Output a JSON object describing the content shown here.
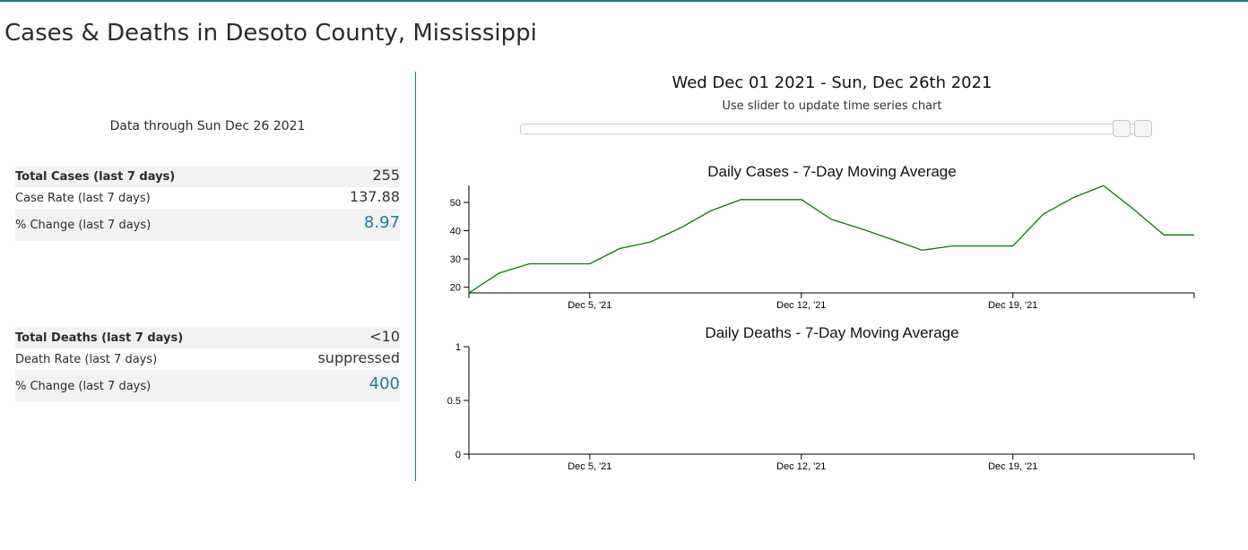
{
  "page": {
    "title": "Cases & Deaths in Desoto County, Mississippi",
    "data_through": "Data through Sun Dec 26 2021"
  },
  "cases_table": {
    "rows": [
      {
        "label": "Total Cases (last 7 days)",
        "value": "255"
      },
      {
        "label": "Case Rate (last 7 days)",
        "value": "137.88"
      },
      {
        "label": "% Change (last 7 days)",
        "value": "8.97"
      }
    ]
  },
  "deaths_table": {
    "rows": [
      {
        "label": "Total Deaths (last 7 days)",
        "value": "<10"
      },
      {
        "label": "Death Rate (last 7 days)",
        "value": "suppressed"
      },
      {
        "label": "% Change (last 7 days)",
        "value": "400"
      }
    ]
  },
  "slider": {
    "range_label": "Wed Dec 01 2021 - Sun, Dec 26th 2021",
    "hint": "Use slider to update time series chart",
    "position": 0.97
  },
  "colors": {
    "accent": "#1a7f9c",
    "line": "#008000"
  },
  "chart_data": [
    {
      "type": "line",
      "title": "Daily Cases - 7-Day Moving Average",
      "xlabel": "",
      "ylabel": "",
      "x_start": "2021-12-01",
      "x_end": "2021-12-25",
      "x": [
        "2021-12-01",
        "2021-12-02",
        "2021-12-03",
        "2021-12-04",
        "2021-12-05",
        "2021-12-06",
        "2021-12-07",
        "2021-12-08",
        "2021-12-09",
        "2021-12-10",
        "2021-12-11",
        "2021-12-12",
        "2021-12-13",
        "2021-12-14",
        "2021-12-15",
        "2021-12-16",
        "2021-12-17",
        "2021-12-18",
        "2021-12-19",
        "2021-12-20",
        "2021-12-21",
        "2021-12-22",
        "2021-12-23",
        "2021-12-24",
        "2021-12-25"
      ],
      "series": [
        {
          "values": [
            18,
            25,
            28.3,
            28.3,
            28.3,
            33.7,
            36,
            41,
            47,
            51,
            51,
            51,
            44,
            40.6,
            36.9,
            33.1,
            34.6,
            34.6,
            34.6,
            45.8,
            51.7,
            55.9,
            47.5,
            38.5,
            38.5
          ]
        }
      ],
      "ylim": [
        18,
        56
      ],
      "yticks": [
        "20",
        "30",
        "40",
        "50"
      ],
      "ytick_values": [
        20,
        30,
        40,
        50
      ],
      "xticks": [
        "Dec 5, '21",
        "Dec 12, '21",
        "Dec 19, '21"
      ],
      "xtick_dates": [
        "2021-12-05",
        "2021-12-12",
        "2021-12-19"
      ],
      "grid": false,
      "legend": "none"
    },
    {
      "type": "line",
      "title": "Daily Deaths - 7-Day Moving Average",
      "xlabel": "",
      "ylabel": "",
      "x_start": "2021-12-01",
      "x_end": "2021-12-25",
      "x": [],
      "series": [],
      "ylim": [
        0,
        1
      ],
      "yticks": [
        "0",
        "0.5",
        "1"
      ],
      "ytick_values": [
        0,
        0.5,
        1
      ],
      "xticks": [
        "Dec 5, '21",
        "Dec 12, '21",
        "Dec 19, '21"
      ],
      "xtick_dates": [
        "2021-12-05",
        "2021-12-12",
        "2021-12-19"
      ],
      "grid": false,
      "legend": "none"
    }
  ]
}
